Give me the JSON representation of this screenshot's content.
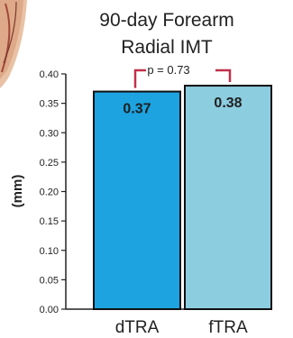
{
  "chart_data": {
    "type": "bar",
    "title_lines": [
      "90-day Forearm",
      "Radial IMT"
    ],
    "ylabel": "(mm)",
    "xlabel": "",
    "ylim": [
      0,
      0.4
    ],
    "yticks": [
      "0.00",
      "0.05",
      "0.10",
      "0.15",
      "0.20",
      "0.25",
      "0.30",
      "0.35",
      "0.40"
    ],
    "categories": [
      "dTRA",
      "fTRA"
    ],
    "values": [
      0.37,
      0.38
    ],
    "value_labels": [
      "0.37",
      "0.38"
    ],
    "bar_colors": [
      "#1ca3e0",
      "#8ccde0"
    ],
    "grid": false,
    "annotation": {
      "text": "p = 0.73",
      "color": "#c0304a"
    }
  }
}
